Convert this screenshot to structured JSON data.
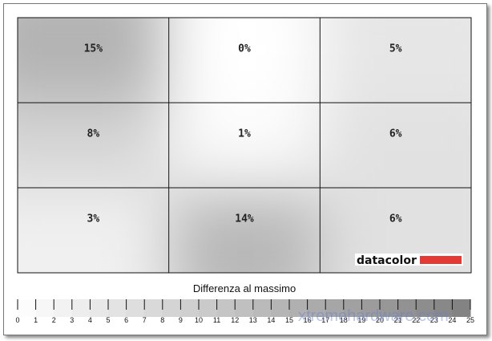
{
  "chart_data": {
    "type": "heatmap",
    "rows": 3,
    "cols": 3,
    "values": [
      [
        15,
        0,
        5
      ],
      [
        8,
        1,
        6
      ],
      [
        3,
        14,
        6
      ]
    ],
    "labels": [
      [
        "15%",
        "0%",
        "5%"
      ],
      [
        "8%",
        "1%",
        "6%"
      ],
      [
        "3%",
        "14%",
        "6%"
      ]
    ],
    "colorbar": {
      "title": "Differenza al massimo",
      "min": 0,
      "max": 25,
      "ticks": [
        "0",
        "1",
        "2",
        "3",
        "4",
        "5",
        "6",
        "7",
        "8",
        "9",
        "10",
        "11",
        "12",
        "13",
        "14",
        "15",
        "16",
        "17",
        "18",
        "19",
        "20",
        "21",
        "22",
        "23",
        "24",
        "25"
      ],
      "color_low": "#ffffff",
      "color_high": "#808080"
    },
    "grid": true
  },
  "logo": {
    "text": "datacolor",
    "accent": "#e53935"
  },
  "watermark": "xtremehardware.com"
}
